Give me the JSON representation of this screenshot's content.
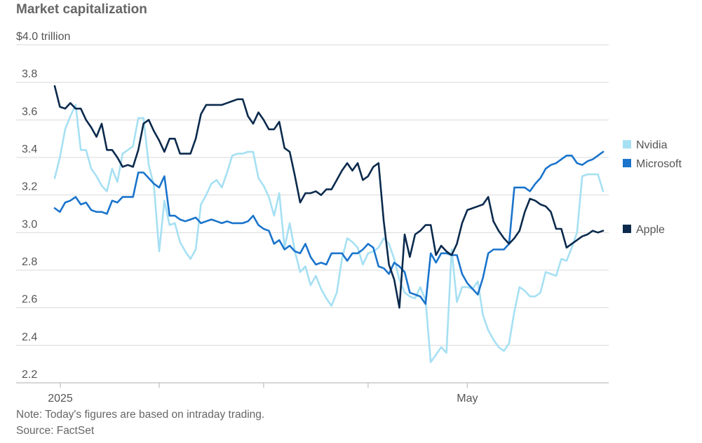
{
  "chart_data": {
    "type": "line",
    "title": "Market capitalization",
    "ylabel_top": "$4.0 trillion",
    "ylim": [
      2.2,
      4.0
    ],
    "yticks": [
      2.2,
      2.4,
      2.6,
      2.8,
      3.0,
      3.2,
      3.4,
      3.6,
      3.8
    ],
    "ytick_labels": [
      "2.2",
      "2.4",
      "2.6",
      "2.8",
      "3.0",
      "3.2",
      "3.4",
      "3.6",
      "3.8"
    ],
    "xlim": [
      0,
      105
    ],
    "xticks": [
      0,
      20,
      40,
      60,
      79
    ],
    "xtick_labels": [
      "2025",
      "",
      "",
      "",
      "May"
    ],
    "grid": true,
    "legend": "right",
    "series": [
      {
        "name": "Nvidia",
        "color": "#a6e0f3",
        "values": [
          3.29,
          3.4,
          3.55,
          3.62,
          3.68,
          3.44,
          3.44,
          3.34,
          3.3,
          3.25,
          3.22,
          3.34,
          3.27,
          3.42,
          3.44,
          3.46,
          3.61,
          3.61,
          3.36,
          3.25,
          2.9,
          3.17,
          3.04,
          3.05,
          2.95,
          2.9,
          2.86,
          2.91,
          3.15,
          3.2,
          3.26,
          3.28,
          3.24,
          3.32,
          3.41,
          3.42,
          3.42,
          3.43,
          3.43,
          3.29,
          3.25,
          3.19,
          3.09,
          3.21,
          2.92,
          3.05,
          2.9,
          2.79,
          2.82,
          2.72,
          2.77,
          2.7,
          2.65,
          2.61,
          2.68,
          2.86,
          2.97,
          2.95,
          2.92,
          2.83,
          2.89,
          2.9,
          2.92,
          2.97,
          2.94,
          2.86,
          2.75,
          2.68,
          2.66,
          2.65,
          2.71,
          2.64,
          2.31,
          2.35,
          2.39,
          2.36,
          2.91,
          2.63,
          2.71,
          2.71,
          2.7,
          2.74,
          2.56,
          2.48,
          2.43,
          2.39,
          2.37,
          2.41,
          2.58,
          2.71,
          2.69,
          2.66,
          2.66,
          2.68,
          2.79,
          2.78,
          2.77,
          2.86,
          2.85,
          2.92,
          3.0,
          3.3,
          3.31,
          3.31,
          3.31,
          3.22
        ]
      },
      {
        "name": "Microsoft",
        "color": "#1a74cc",
        "values": [
          3.13,
          3.11,
          3.16,
          3.17,
          3.19,
          3.15,
          3.16,
          3.12,
          3.11,
          3.11,
          3.1,
          3.17,
          3.16,
          3.19,
          3.19,
          3.19,
          3.32,
          3.32,
          3.29,
          3.26,
          3.24,
          3.3,
          3.09,
          3.09,
          3.07,
          3.06,
          3.07,
          3.08,
          3.05,
          3.06,
          3.07,
          3.06,
          3.05,
          3.06,
          3.05,
          3.05,
          3.05,
          3.06,
          3.09,
          3.04,
          3.02,
          3.01,
          2.94,
          2.96,
          2.91,
          2.93,
          2.9,
          2.89,
          2.94,
          2.87,
          2.83,
          2.84,
          2.83,
          2.89,
          2.89,
          2.89,
          2.85,
          2.89,
          2.89,
          2.91,
          2.94,
          2.92,
          2.82,
          2.81,
          2.78,
          2.84,
          2.82,
          2.79,
          2.68,
          2.67,
          2.66,
          2.62,
          2.89,
          2.84,
          2.89,
          2.89,
          2.88,
          2.88,
          2.78,
          2.73,
          2.7,
          2.67,
          2.76,
          2.89,
          2.91,
          2.91,
          2.91,
          2.94,
          3.24,
          3.24,
          3.24,
          3.22,
          3.26,
          3.29,
          3.34,
          3.36,
          3.37,
          3.39,
          3.41,
          3.41,
          3.37,
          3.36,
          3.38,
          3.39,
          3.41,
          3.43
        ]
      },
      {
        "name": "Apple",
        "color": "#0b2a4d",
        "values": [
          3.78,
          3.67,
          3.66,
          3.69,
          3.66,
          3.66,
          3.6,
          3.56,
          3.51,
          3.58,
          3.44,
          3.44,
          3.4,
          3.35,
          3.36,
          3.35,
          3.44,
          3.58,
          3.6,
          3.54,
          3.49,
          3.43,
          3.5,
          3.5,
          3.42,
          3.42,
          3.42,
          3.5,
          3.63,
          3.68,
          3.68,
          3.68,
          3.68,
          3.69,
          3.7,
          3.71,
          3.71,
          3.62,
          3.58,
          3.64,
          3.6,
          3.55,
          3.55,
          3.59,
          3.45,
          3.43,
          3.3,
          3.16,
          3.21,
          3.21,
          3.22,
          3.2,
          3.23,
          3.23,
          3.28,
          3.33,
          3.37,
          3.33,
          3.37,
          3.28,
          3.3,
          3.35,
          3.37,
          3.06,
          2.83,
          2.75,
          2.6,
          2.99,
          2.87,
          2.99,
          3.01,
          3.04,
          3.04,
          2.88,
          2.93,
          2.9,
          2.88,
          2.94,
          3.05,
          3.12,
          3.13,
          3.14,
          3.15,
          3.19,
          3.06,
          3.01,
          2.97,
          2.94,
          2.97,
          3.01,
          3.11,
          3.18,
          3.17,
          3.15,
          3.14,
          3.11,
          3.02,
          3.02,
          2.92,
          2.94,
          2.96,
          2.98,
          2.99,
          3.01,
          3.0,
          3.01
        ]
      }
    ]
  },
  "notes": {
    "note": "Note: Today's figures are based on intraday trading.",
    "source": "Source: FactSet"
  }
}
